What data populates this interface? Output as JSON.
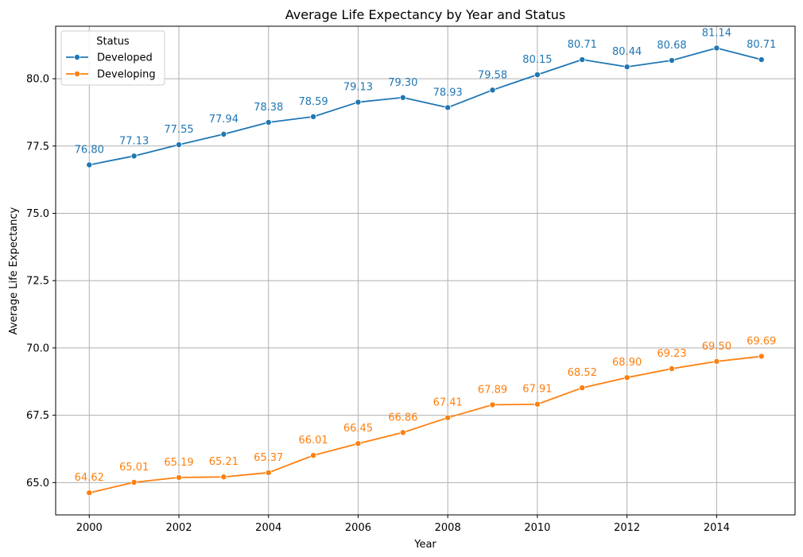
{
  "chart_data": {
    "type": "line",
    "title": "Average Life Expectancy by Year and Status",
    "xlabel": "Year",
    "ylabel": "Average Life Expectancy",
    "x": [
      2000,
      2001,
      2002,
      2003,
      2004,
      2005,
      2006,
      2007,
      2008,
      2009,
      2010,
      2011,
      2012,
      2013,
      2014,
      2015
    ],
    "xlim": [
      1999.25,
      2015.75
    ],
    "ylim": [
      63.8,
      81.95
    ],
    "x_ticks": [
      "2000",
      "2002",
      "2004",
      "2006",
      "2008",
      "2010",
      "2012",
      "2014"
    ],
    "y_ticks": [
      "65.0",
      "67.5",
      "70.0",
      "72.5",
      "75.0",
      "77.5",
      "80.0"
    ],
    "grid": true,
    "legend": {
      "title": "Status",
      "placement": "top-left"
    },
    "series": [
      {
        "name": "Developed",
        "color": "#1f77b4",
        "values": [
          76.8,
          77.13,
          77.55,
          77.94,
          78.38,
          78.59,
          79.13,
          79.3,
          78.93,
          79.58,
          80.15,
          80.71,
          80.44,
          80.68,
          81.14,
          80.71
        ],
        "labels": [
          "76.80",
          "77.13",
          "77.55",
          "77.94",
          "78.38",
          "78.59",
          "79.13",
          "79.30",
          "78.93",
          "79.58",
          "80.15",
          "80.71",
          "80.44",
          "80.68",
          "81.14",
          "80.71"
        ]
      },
      {
        "name": "Developing",
        "color": "#ff7f0e",
        "values": [
          64.62,
          65.01,
          65.19,
          65.21,
          65.37,
          66.01,
          66.45,
          66.86,
          67.41,
          67.89,
          67.91,
          68.52,
          68.9,
          69.23,
          69.5,
          69.69
        ],
        "labels": [
          "64.62",
          "65.01",
          "65.19",
          "65.21",
          "65.37",
          "66.01",
          "66.45",
          "66.86",
          "67.41",
          "67.89",
          "67.91",
          "68.52",
          "68.90",
          "69.23",
          "69.50",
          "69.69"
        ]
      }
    ]
  }
}
